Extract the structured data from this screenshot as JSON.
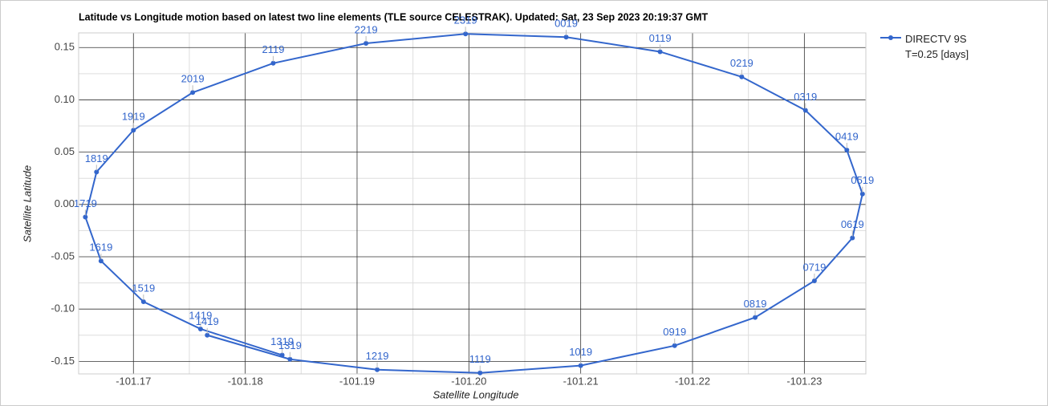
{
  "chart_data": {
    "type": "line",
    "title": "Latitude vs Longitude motion based on latest two line elements (TLE source CELESTRAK). Updated: Sat, 23 Sep 2023 20:19:37 GMT",
    "x_label": "Satellite Longitude",
    "y_label": "Satellite Latitude",
    "xlim": [
      -101.1651,
      -101.2355
    ],
    "ylim": [
      -0.162,
      0.164
    ],
    "xticks": [
      -101.17,
      -101.18,
      -101.19,
      {
        "value": -101.2,
        "label": "-101.20"
      },
      -101.21,
      -101.22,
      -101.23
    ],
    "yticks": [
      0.15,
      {
        "value": 0.1,
        "label": "0.10"
      },
      0.05,
      {
        "value": 0,
        "label": "0.00"
      },
      -0.05,
      {
        "value": -0.1,
        "label": "-0.10"
      },
      -0.15
    ],
    "grid": true,
    "series": [
      {
        "name": "DIRECTV 9S T=0.25 [days]",
        "color": "#3366cc",
        "labels": [
          "1319",
          "1419",
          "1519",
          "1619",
          "1719",
          "1819",
          "1919",
          "2019",
          "2119",
          "2219",
          "2319",
          "0019",
          "0119",
          "0219",
          "0319",
          "0419",
          "0519",
          "0619",
          "0719",
          "0819",
          "0919",
          "1019",
          "1119",
          "1219",
          "1319",
          "1419"
        ],
        "x": [
          -101.1833,
          -101.176,
          -101.1709,
          -101.1671,
          -101.1657,
          -101.1667,
          -101.17,
          -101.1753,
          -101.1825,
          -101.1908,
          -101.1997,
          -101.2087,
          -101.2171,
          -101.2244,
          -101.2301,
          -101.2338,
          -101.2352,
          -101.2343,
          -101.2309,
          -101.2256,
          -101.2184,
          -101.21,
          -101.201,
          -101.1918,
          -101.184,
          -101.1766
        ],
        "values": [
          -0.144,
          -0.119,
          -0.093,
          -0.054,
          -0.012,
          0.031,
          0.071,
          0.107,
          0.135,
          0.154,
          0.163,
          0.16,
          0.146,
          0.122,
          0.09,
          0.052,
          0.01,
          -0.032,
          -0.073,
          -0.108,
          -0.135,
          -0.154,
          -0.161,
          -0.158,
          -0.148,
          -0.125
        ]
      }
    ]
  }
}
